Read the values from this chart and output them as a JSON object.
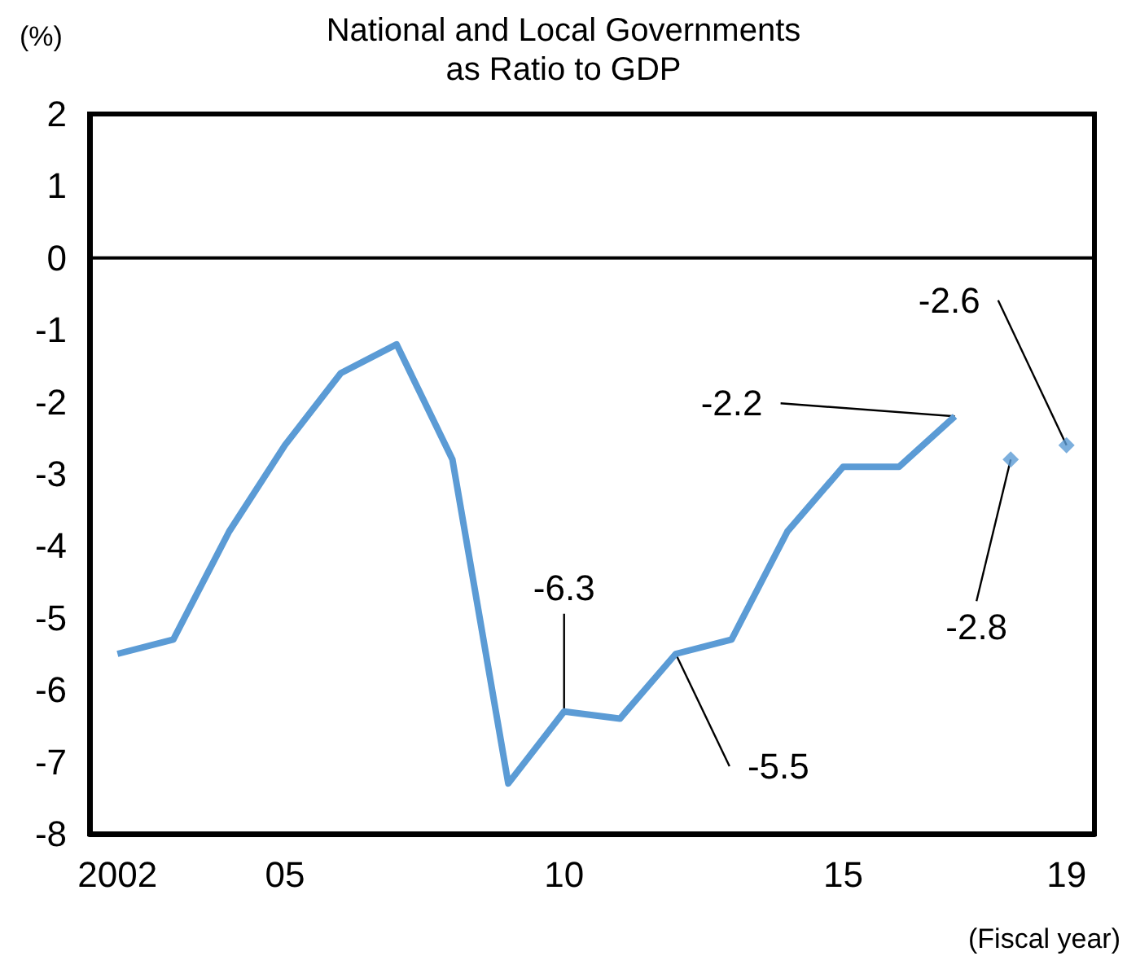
{
  "chart_data": {
    "type": "line",
    "title": "National and Local Governments\nas Ratio to GDP",
    "xlabel": "(Fiscal year)",
    "ylabel": "(%)",
    "xlim": [
      2001.5,
      2019.5
    ],
    "xticks": [
      {
        "value": 2002,
        "label": "2002"
      },
      {
        "value": 2005,
        "label": "05"
      },
      {
        "value": 2010,
        "label": "10"
      },
      {
        "value": 2015,
        "label": "15"
      },
      {
        "value": 2019,
        "label": "19"
      }
    ],
    "ylim": [
      -8,
      2
    ],
    "yticks": [
      -8,
      -7,
      -6,
      -5,
      -4,
      -3,
      -2,
      -1,
      0,
      1,
      2
    ],
    "grid": false,
    "series": [
      {
        "marker": "none",
        "color": "#5b9bd5",
        "x": [
          2002,
          2003,
          2004,
          2005,
          2006,
          2007,
          2008,
          2009,
          2010,
          2011,
          2012,
          2013,
          2014,
          2015,
          2016,
          2017
        ],
        "values": [
          -5.5,
          -5.3,
          -3.8,
          -2.6,
          -1.6,
          -1.2,
          -2.8,
          -7.3,
          -6.3,
          -6.4,
          -5.5,
          -5.3,
          -3.8,
          -2.9,
          -2.9,
          -2.2
        ]
      },
      {
        "type": "scatter",
        "marker": "diamond",
        "color": "#5b9bd5",
        "x": [
          2018,
          2019
        ],
        "values": [
          -2.8,
          -2.6
        ]
      }
    ],
    "ref_lines": [
      {
        "axis": "y",
        "value": 0,
        "label": null,
        "color": "#000000"
      }
    ],
    "annotations": [
      {
        "text": "-2.2",
        "x": 2017,
        "y": -2.2
      },
      {
        "text": "-6.3",
        "x": 2010,
        "y": -6.3
      },
      {
        "text": "-5.5",
        "x": 2012,
        "y": -5.5
      },
      {
        "text": "-2.8",
        "x": 2018,
        "y": -2.8
      },
      {
        "text": "-2.6",
        "x": 2019,
        "y": -2.6
      }
    ]
  }
}
